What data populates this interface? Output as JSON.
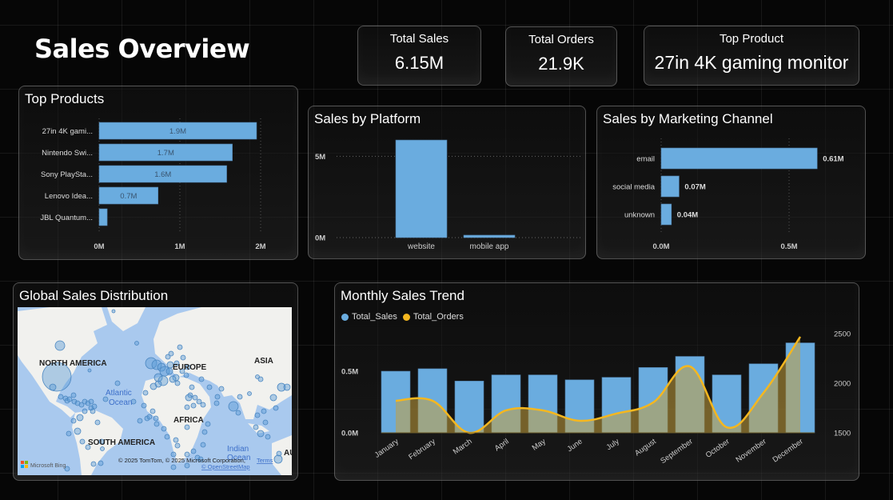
{
  "page": {
    "title": "Sales Overview"
  },
  "kpis": [
    {
      "label": "Total Sales",
      "value": "6.15M"
    },
    {
      "label": "Total Orders",
      "value": "21.9K"
    },
    {
      "label": "Top Product",
      "value": "27in 4K gaming monitor"
    }
  ],
  "colors": {
    "bar": "#6aacdf",
    "line": "#f5b71f",
    "area": "rgba(230,215,130,0.65)",
    "map_water": "#a9c9ee",
    "map_land": "#f1f1ee",
    "bubble": "#5b9bd5"
  },
  "top_products": {
    "title": "Top Products",
    "x_ticks": [
      "0M",
      "1M",
      "2M"
    ]
  },
  "platform": {
    "title": "Sales by Platform",
    "y_ticks": [
      "0M",
      "5M"
    ]
  },
  "channel": {
    "title": "Sales by Marketing Channel",
    "x_ticks": [
      "0.0M",
      "0.5M"
    ]
  },
  "map": {
    "title": "Global Sales Distribution",
    "labels": {
      "north_america": "NORTH AMERICA",
      "europe": "EUROPE",
      "asia": "ASIA",
      "africa": "AFRICA",
      "south_america": "SOUTH AMERICA",
      "atlantic": "Atlantic Ocean",
      "indian": "Indian Ocean",
      "australia": "AU"
    },
    "attribution": "© 2025 TomTom, © 2025 Microsoft Corporation,",
    "terms_link": "Terms",
    "osm_link": "© OpenStreetMap",
    "provider": "Microsoft Bing"
  },
  "monthly": {
    "title": "Monthly Sales Trend",
    "legend": [
      "Total_Sales",
      "Total_Orders"
    ]
  },
  "chart_data": [
    {
      "type": "bar",
      "orientation": "horizontal",
      "title": "Top Products",
      "categories": [
        "27in 4K gami...",
        "Nintendo Swi...",
        "Sony PlaySta...",
        "Lenovo Idea...",
        "JBL Quantum..."
      ],
      "values": [
        1.95,
        1.65,
        1.58,
        0.73,
        0.1
      ],
      "data_labels": [
        "1.9M",
        "1.7M",
        "1.6M",
        "0.7M",
        ""
      ],
      "unit": "M",
      "xlim": [
        0,
        2
      ],
      "x_ticks": [
        "0M",
        "1M",
        "2M"
      ],
      "grid": true
    },
    {
      "type": "bar",
      "orientation": "vertical",
      "title": "Sales by Platform",
      "categories": [
        "website",
        "mobile app"
      ],
      "values": [
        6.0,
        0.15
      ],
      "unit": "M",
      "ylim": [
        0,
        6.2
      ],
      "y_ticks": [
        "0M",
        "5M"
      ],
      "grid": true
    },
    {
      "type": "bar",
      "orientation": "horizontal",
      "title": "Sales by Marketing Channel",
      "categories": [
        "email",
        "social media",
        "unknown"
      ],
      "values": [
        0.61,
        0.07,
        0.04
      ],
      "data_labels": [
        "0.61M",
        "0.07M",
        "0.04M"
      ],
      "unit": "M",
      "xlim": [
        0,
        0.75
      ],
      "x_ticks": [
        "0.0M",
        "0.5M"
      ],
      "grid": true
    },
    {
      "type": "bar",
      "combo": "bar+area",
      "title": "Monthly Sales Trend",
      "categories": [
        "January",
        "February",
        "March",
        "April",
        "May",
        "June",
        "July",
        "August",
        "September",
        "October",
        "November",
        "December"
      ],
      "series": [
        {
          "name": "Total_Sales",
          "axis": "left",
          "type": "bar",
          "values": [
            0.5,
            0.52,
            0.42,
            0.47,
            0.47,
            0.43,
            0.45,
            0.53,
            0.62,
            0.47,
            0.56,
            0.73
          ]
        },
        {
          "name": "Total_Orders",
          "axis": "right",
          "type": "area",
          "values": [
            1823,
            1823,
            1500,
            1726,
            1726,
            1621,
            1694,
            1806,
            2169,
            1556,
            1903,
            2468
          ]
        }
      ],
      "y_left": {
        "ylim": [
          0,
          0.8
        ],
        "ticks": [
          "0.0M",
          "0.5M"
        ]
      },
      "y_right": {
        "ylim": [
          1500,
          2600
        ],
        "ticks": [
          "1500",
          "2000",
          "2500"
        ]
      },
      "legend": "top-left",
      "grid": false
    }
  ]
}
